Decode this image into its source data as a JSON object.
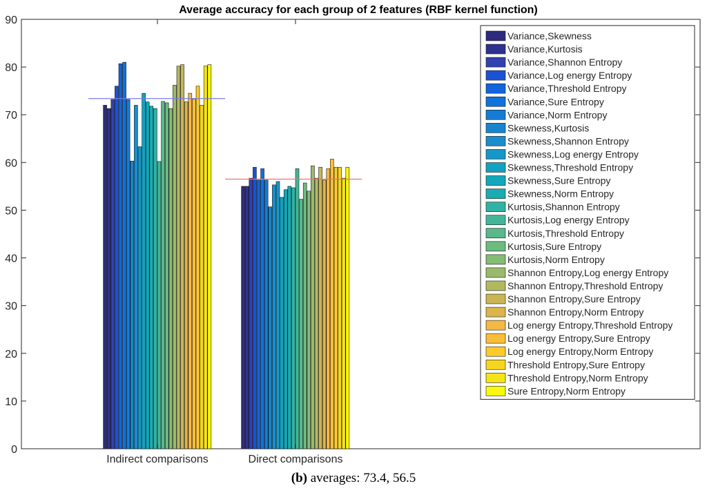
{
  "chart_data": {
    "type": "bar",
    "title": "Average accuracy for each group of 2 features (RBF kernel function)",
    "xlabel": "",
    "ylabel": "",
    "ylim": [
      0,
      90
    ],
    "yticks": [
      0,
      10,
      20,
      30,
      40,
      50,
      60,
      70,
      80,
      90
    ],
    "categories": [
      "Indirect comparisons",
      "Direct comparisons"
    ],
    "legend_position": "top-right",
    "grid": false,
    "averages": [
      {
        "category": "Indirect comparisons",
        "value": 73.4,
        "color": "#7a7af0"
      },
      {
        "category": "Direct comparisons",
        "value": 56.5,
        "color": "#f07070"
      }
    ],
    "series": [
      {
        "name": "Variance,Skewness",
        "color": "#2e2a7e",
        "values": [
          72.0,
          55.0
        ]
      },
      {
        "name": "Variance,Kurtosis",
        "color": "#2e3190",
        "values": [
          71.3,
          55.0
        ]
      },
      {
        "name": "Variance,Shannon Entropy",
        "color": "#3241b0",
        "values": [
          73.2,
          56.7
        ]
      },
      {
        "name": "Variance,Log energy Entropy",
        "color": "#1a52d6",
        "values": [
          76.0,
          59.0
        ]
      },
      {
        "name": "Variance,Threshold Entropy",
        "color": "#1164dc",
        "values": [
          80.7,
          56.3
        ]
      },
      {
        "name": "Variance,Sure Entropy",
        "color": "#0f72dd",
        "values": [
          81.0,
          58.7
        ]
      },
      {
        "name": "Variance,Norm Entropy",
        "color": "#147cd6",
        "values": [
          73.2,
          56.3
        ]
      },
      {
        "name": "Skewness,Kurtosis",
        "color": "#1884cf",
        "values": [
          60.3,
          50.7
        ]
      },
      {
        "name": "Skewness,Shannon Entropy",
        "color": "#1a8ecb",
        "values": [
          72.0,
          55.3
        ]
      },
      {
        "name": "Skewness,Log energy Entropy",
        "color": "#1598c8",
        "values": [
          63.3,
          56.0
        ]
      },
      {
        "name": "Skewness,Threshold Entropy",
        "color": "#12a2c2",
        "values": [
          74.5,
          52.7
        ]
      },
      {
        "name": "Skewness,Sure Entropy",
        "color": "#10a8ba",
        "values": [
          72.7,
          54.3
        ]
      },
      {
        "name": "Skewness,Norm Entropy",
        "color": "#1aacb0",
        "values": [
          71.8,
          55.0
        ]
      },
      {
        "name": "Kurtosis,Shannon Entropy",
        "color": "#2eb3a4",
        "values": [
          71.3,
          54.7
        ]
      },
      {
        "name": "Kurtosis,Log energy Entropy",
        "color": "#42b797",
        "values": [
          60.2,
          58.7
        ]
      },
      {
        "name": "Kurtosis,Threshold Entropy",
        "color": "#57b98a",
        "values": [
          72.8,
          52.3
        ]
      },
      {
        "name": "Kurtosis,Sure Entropy",
        "color": "#6cbb7f",
        "values": [
          72.5,
          55.7
        ]
      },
      {
        "name": "Kurtosis,Norm Entropy",
        "color": "#85bb73",
        "values": [
          71.3,
          54.0
        ]
      },
      {
        "name": "Shannon Entropy,Log energy Entropy",
        "color": "#9aba6a",
        "values": [
          76.2,
          59.3
        ]
      },
      {
        "name": "Shannon Entropy,Threshold Entropy",
        "color": "#b2b85e",
        "values": [
          80.2,
          56.7
        ]
      },
      {
        "name": "Shannon Entropy,Sure Entropy",
        "color": "#c9b653",
        "values": [
          80.5,
          59.0
        ]
      },
      {
        "name": "Shannon Entropy,Norm Entropy",
        "color": "#dcb44c",
        "values": [
          72.7,
          56.3
        ]
      },
      {
        "name": "Log energy Entropy,Threshold Entropy",
        "color": "#f5b844",
        "values": [
          74.5,
          58.7
        ]
      },
      {
        "name": "Log energy Entropy,Sure Entropy",
        "color": "#fbbe38",
        "values": [
          73.3,
          60.7
        ]
      },
      {
        "name": "Log energy Entropy,Norm Entropy",
        "color": "#fcca2c",
        "values": [
          76.0,
          59.0
        ]
      },
      {
        "name": "Threshold Entropy,Sure Entropy",
        "color": "#f6d521",
        "values": [
          72.0,
          59.0
        ]
      },
      {
        "name": "Threshold Entropy,Norm Entropy",
        "color": "#f5e415",
        "values": [
          80.2,
          56.7
        ]
      },
      {
        "name": "Sure Entropy,Norm Entropy",
        "color": "#f8f810",
        "values": [
          80.5,
          59.0
        ]
      }
    ]
  },
  "caption": {
    "label": "(b)",
    "text": "averages: 73.4, 56.5"
  }
}
